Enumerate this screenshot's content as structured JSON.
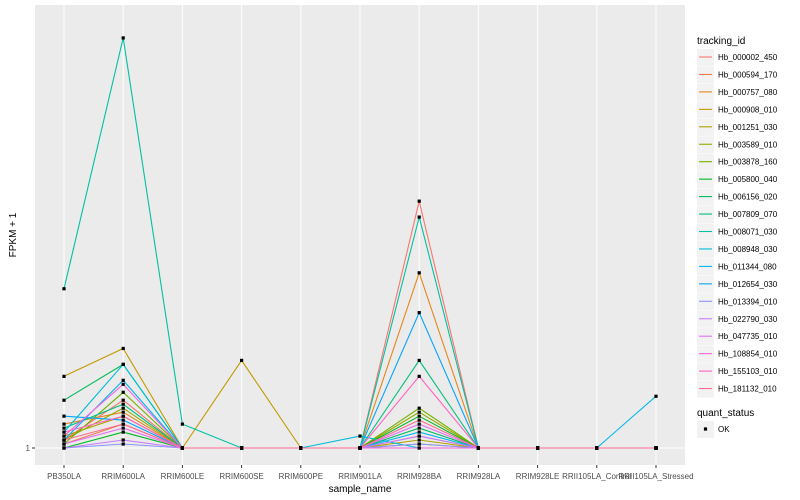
{
  "chart_data": {
    "type": "line",
    "title": "",
    "xlabel": "sample_name",
    "ylabel": "FPKM + 1",
    "categories": [
      "PB350LA",
      "RRIM600LA",
      "RRIM600LE",
      "RRIM600SE",
      "RRIM600PE",
      "RRIM901LA",
      "RRIM928BA",
      "RRIM928LA",
      "RRIM928LE",
      "RRII105LA_Control",
      "RRII105LA_Stressed"
    ],
    "y_ticks": [
      {
        "value": 1,
        "label": "1"
      }
    ],
    "ylim": [
      1,
      11.6
    ],
    "grid": true,
    "legend": {
      "color_title": "tracking_id",
      "shape_title": "quant_status",
      "shape_entries": [
        "OK"
      ],
      "position": "right"
    },
    "series": [
      {
        "name": "Hb_000002_450",
        "color": "#F8766D",
        "values": [
          1.2,
          2.2,
          1,
          1,
          1,
          1,
          7.2,
          1,
          1,
          1,
          1
        ]
      },
      {
        "name": "Hb_000594_170",
        "color": "#F17D50",
        "values": [
          1.1,
          1.6,
          1,
          1,
          1,
          1,
          1.3,
          1,
          1,
          1,
          1
        ]
      },
      {
        "name": "Hb_000757_080",
        "color": "#E7861B",
        "values": [
          1.6,
          1.9,
          1,
          1,
          1,
          1,
          5.4,
          1,
          1,
          1,
          1
        ]
      },
      {
        "name": "Hb_000908_010",
        "color": "#C49A00",
        "values": [
          2.8,
          3.5,
          1,
          3.2,
          1,
          1,
          1.1,
          1,
          1,
          1,
          1
        ]
      },
      {
        "name": "Hb_001251_030",
        "color": "#AFA100",
        "values": [
          1.3,
          1.8,
          1,
          1,
          1,
          1,
          1.2,
          1,
          1,
          1,
          1
        ]
      },
      {
        "name": "Hb_003589_010",
        "color": "#96A900",
        "values": [
          1.2,
          2.0,
          1,
          1,
          1,
          1,
          1.9,
          1,
          1,
          1,
          1
        ]
      },
      {
        "name": "Hb_003878_160",
        "color": "#72B000",
        "values": [
          1.1,
          2.4,
          1,
          1,
          1,
          1,
          2.0,
          1,
          1,
          1,
          1
        ]
      },
      {
        "name": "Hb_005800_040",
        "color": "#00B81F",
        "values": [
          1.0,
          1.4,
          1,
          1,
          1,
          1,
          1.8,
          1,
          1,
          1,
          1
        ]
      },
      {
        "name": "Hb_006156_020",
        "color": "#00BC59",
        "values": [
          2.2,
          3.1,
          1,
          1,
          1,
          1,
          1.5,
          1,
          1,
          1,
          1
        ]
      },
      {
        "name": "Hb_007809_070",
        "color": "#00BF7D",
        "values": [
          1.5,
          2.1,
          1,
          1,
          1,
          1,
          3.2,
          1,
          1,
          1,
          1
        ]
      },
      {
        "name": "Hb_008071_030",
        "color": "#00C0A3",
        "values": [
          5.0,
          11.3,
          1.6,
          1,
          1,
          1,
          6.8,
          1,
          1,
          1,
          1
        ]
      },
      {
        "name": "Hb_008948_030",
        "color": "#00BCD8",
        "values": [
          1.4,
          3.1,
          1,
          1,
          1,
          1.3,
          1.0,
          1,
          1,
          1,
          1
        ]
      },
      {
        "name": "Hb_011344_080",
        "color": "#00B6EB",
        "values": [
          1.2,
          2.7,
          1,
          1,
          1,
          1,
          1.4,
          1,
          1,
          1,
          2.3
        ]
      },
      {
        "name": "Hb_012654_030",
        "color": "#06A4FF",
        "values": [
          1.8,
          1.7,
          1,
          1,
          1,
          1,
          4.4,
          1,
          1,
          1,
          1
        ]
      },
      {
        "name": "Hb_013394_010",
        "color": "#8B93FF",
        "values": [
          1.0,
          1.1,
          1,
          1,
          1,
          1,
          1.1,
          1,
          1,
          1,
          1
        ]
      },
      {
        "name": "Hb_022790_030",
        "color": "#C77CFF",
        "values": [
          1.0,
          1.2,
          1,
          1,
          1,
          1,
          1.3,
          1,
          1,
          1,
          1
        ]
      },
      {
        "name": "Hb_047735_010",
        "color": "#E36EF6",
        "values": [
          1.1,
          1.5,
          1,
          1,
          1,
          1,
          1.6,
          1,
          1,
          1,
          1
        ]
      },
      {
        "name": "Hb_108854_010",
        "color": "#F564E3",
        "values": [
          1.3,
          2.6,
          1,
          1,
          1,
          1,
          1.0,
          1,
          1,
          1,
          1
        ]
      },
      {
        "name": "Hb_155103_010",
        "color": "#FF61C3",
        "values": [
          1.4,
          1.8,
          1,
          1,
          1,
          1,
          2.8,
          1,
          1,
          1,
          1
        ]
      },
      {
        "name": "Hb_181132_010",
        "color": "#FF6C91",
        "values": [
          1.2,
          1.6,
          1,
          1,
          1,
          1,
          1.7,
          1,
          1,
          1,
          1
        ]
      }
    ]
  }
}
